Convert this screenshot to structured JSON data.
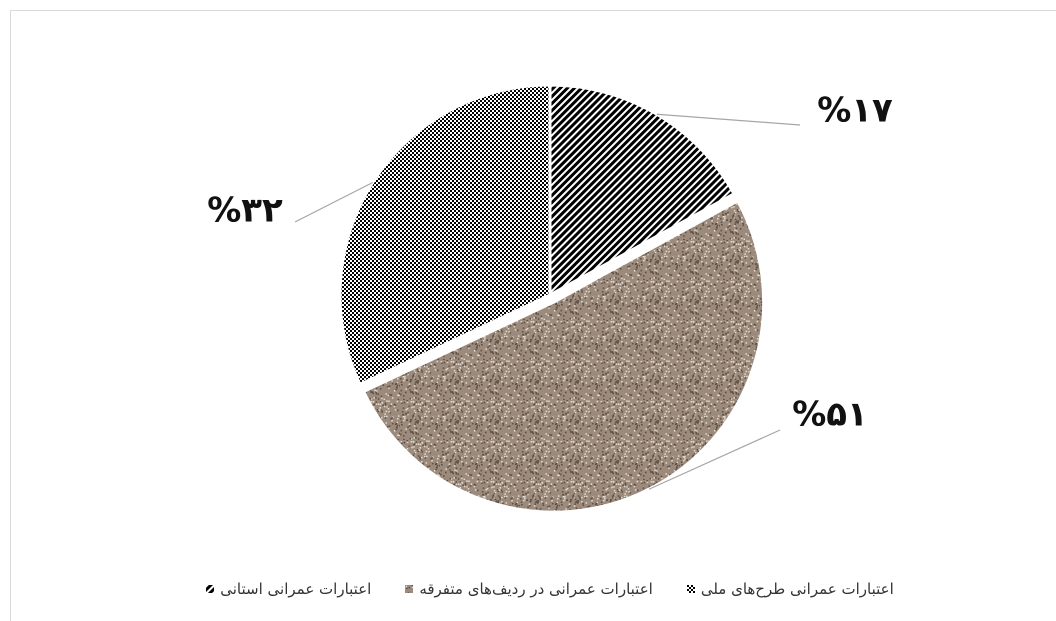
{
  "chart_data": {
    "type": "pie",
    "categories": [
      "اعتبارات عمرانی طرح‌های ملی",
      "اعتبارات عمرانی در ردیف‌های متفرقه",
      "اعتبارات عمرانی استانی"
    ],
    "values": [
      32,
      51,
      17
    ],
    "value_labels": [
      "%۳۲",
      "%۵۱",
      "%۱۷"
    ],
    "colors": [
      "#000000",
      "#9c8b7c",
      "#000000"
    ],
    "patterns": [
      "dots",
      "speckle",
      "stripes"
    ],
    "direction": "counterclockwise"
  }
}
